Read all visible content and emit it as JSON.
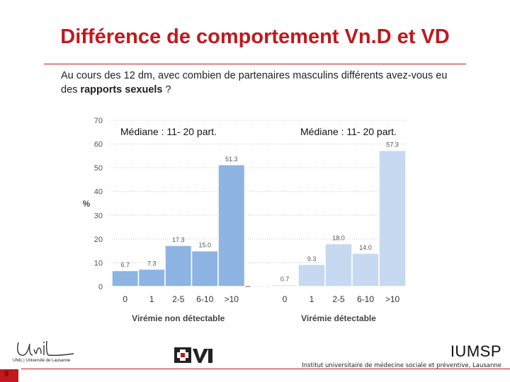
{
  "slide": {
    "title": "Différence de comportement Vn.D et VD",
    "question_part1": "Au cours des 12 dm, avec combien de partenaires masculins différents avez-vous eu des ",
    "question_bold": "rapports sexuels",
    "question_part2": " ?",
    "median_left": "Médiane : 11- 20 part.",
    "median_right": "Médiane : 11- 20 part.",
    "page_number": "9"
  },
  "footer": {
    "unil_caption": "UNIL | Université de Lausanne",
    "iumsp": "IUMSP",
    "iumsp_subtitle": "Institut universitaire de médecine sociale et préventive, Lausanne"
  },
  "chart_data": [
    {
      "type": "bar",
      "xlabel": "Virémie non détectable",
      "ylabel": "%",
      "ylim": [
        0,
        70
      ],
      "yticks": [
        0,
        10,
        20,
        30,
        40,
        50,
        60,
        70
      ],
      "categories": [
        "0",
        "1",
        "2-5",
        "6-10",
        ">10"
      ],
      "values": [
        6.7,
        7.3,
        17.3,
        15.0,
        51.3
      ],
      "value_labels": [
        "6.7",
        "7.3",
        "17.3",
        "15.0",
        "51.3"
      ],
      "grid": true,
      "color": "#8db4e2"
    },
    {
      "type": "bar",
      "xlabel": "Virémie détectable",
      "ylabel": "",
      "ylim": [
        0,
        70
      ],
      "categories": [
        "0",
        "1",
        "2-5",
        "6-10",
        ">10"
      ],
      "values": [
        0.7,
        9.3,
        18.0,
        14.0,
        57.3
      ],
      "value_labels": [
        "0.7",
        "9.3",
        "18.0",
        "14.0",
        "57.3"
      ],
      "grid": true,
      "color": "#c6d9f1"
    }
  ]
}
